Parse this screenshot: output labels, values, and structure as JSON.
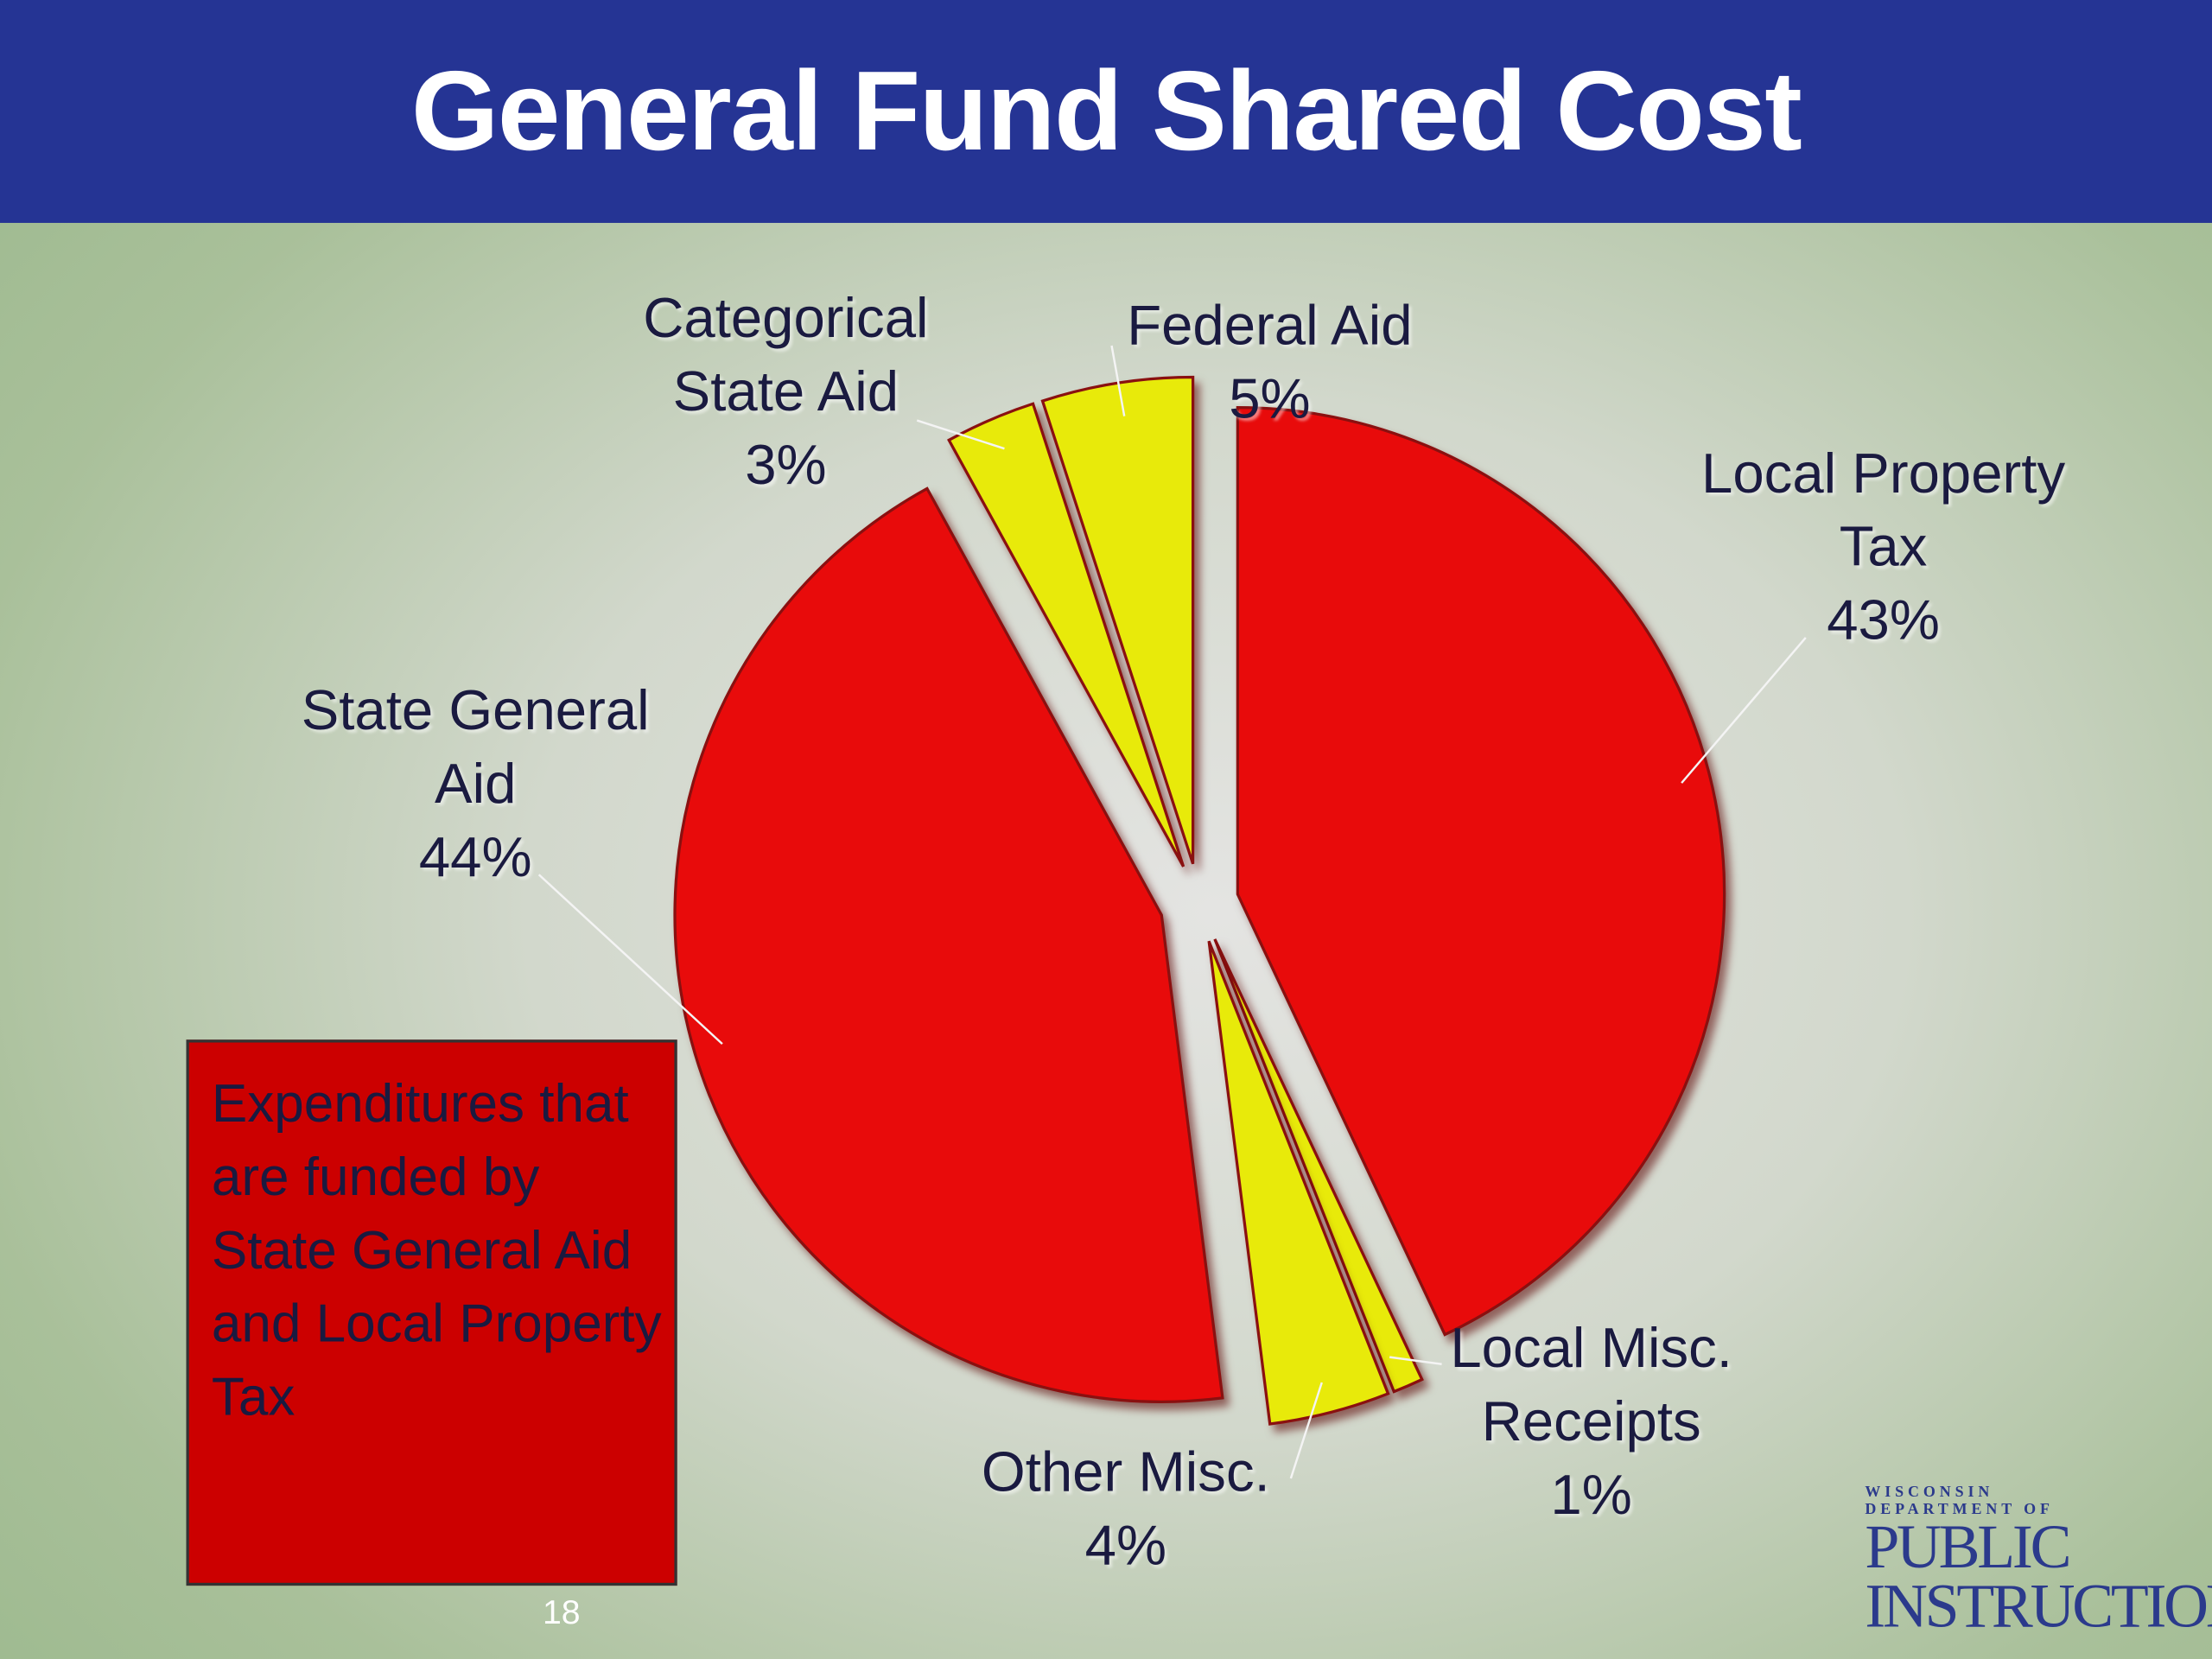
{
  "chart_data": {
    "type": "pie",
    "title": "General Fund Shared Cost",
    "categories": [
      "Local Property Tax",
      "Local Misc. Receipts",
      "Other Misc.",
      "State General Aid",
      "Categorical State Aid",
      "Federal Aid"
    ],
    "values": [
      43,
      1,
      4,
      44,
      3,
      5
    ],
    "value_labels": [
      "43%",
      "1%",
      "4%",
      "44%",
      "3%",
      "5%"
    ],
    "colors": [
      "#e80b0b",
      "#e8ea0a",
      "#e8ea0a",
      "#e80b0b",
      "#e8ea0a",
      "#e8ea0a"
    ]
  },
  "annotation": "Expenditures that are funded by State General Aid and Local Property Tax",
  "page_number": "18",
  "logo": {
    "line1": "WISCONSIN",
    "line2": "DEPARTMENT OF",
    "line3": "PUBLIC",
    "line4": "INSTRUCTION"
  }
}
